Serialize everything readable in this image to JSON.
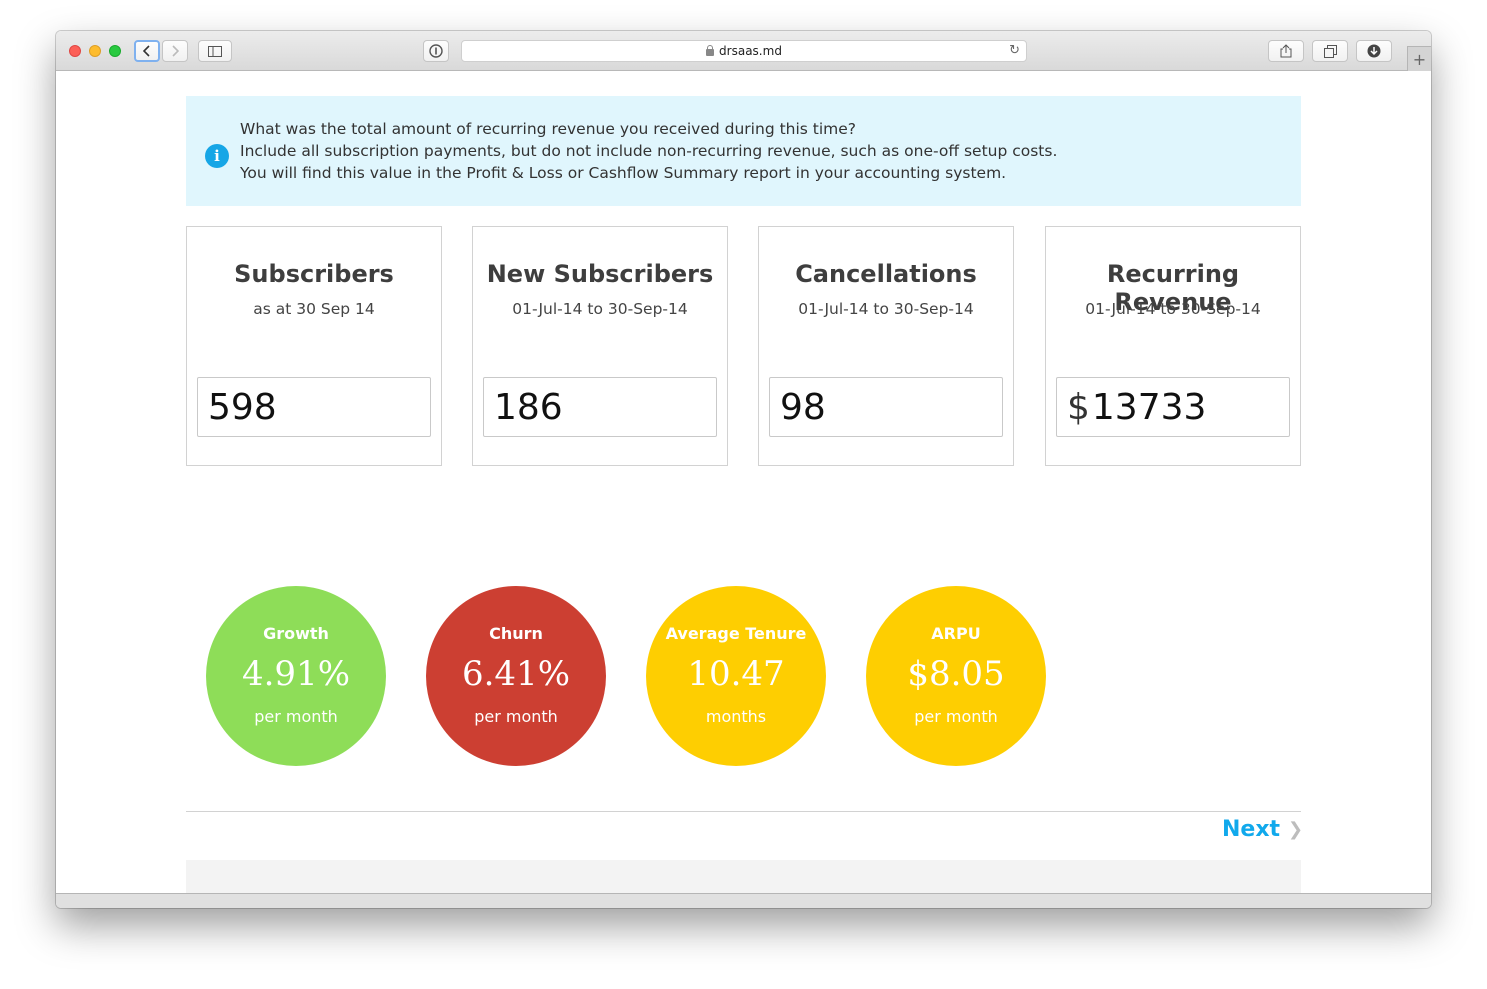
{
  "browser": {
    "url": "drsaas.md",
    "icons": {
      "back": "chevron-left-icon",
      "forward": "chevron-right-icon",
      "sidebar": "sidebar-icon",
      "reader": "reader-icon",
      "reload": "reload-icon",
      "share": "share-icon",
      "tabs": "tabs-icon",
      "download": "download-icon",
      "new_tab": "plus-icon"
    }
  },
  "info": {
    "icon": "info-icon",
    "lines": [
      "What was the total amount of recurring revenue you received during this time?",
      "Include all subscription payments, but do not include non-recurring revenue, such as one-off setup costs.",
      "You will find this value in the Profit & Loss or Cashflow Summary report in your accounting system."
    ]
  },
  "cards": [
    {
      "title": "Subscribers",
      "subtitle": "as at 30 Sep 14",
      "value": "598"
    },
    {
      "title": "New Subscribers",
      "subtitle": "01-Jul-14 to 30-Sep-14",
      "value": "186"
    },
    {
      "title": "Cancellations",
      "subtitle": "01-Jul-14 to 30-Sep-14",
      "value": "98"
    },
    {
      "title": "Recurring Revenue",
      "subtitle": "01-Jul-14 to 30-Sep-14",
      "currency": "$",
      "value": "13733"
    }
  ],
  "metrics": [
    {
      "label": "Growth",
      "value": "4.91%",
      "unit": "per month",
      "color": "#8edd58"
    },
    {
      "label": "Churn",
      "value": "6.41%",
      "unit": "per month",
      "color": "#cc3f32"
    },
    {
      "label": "Average Tenure",
      "value": "10.47",
      "unit": "months",
      "color": "#fece01"
    },
    {
      "label": "ARPU",
      "value": "$8.05",
      "unit": "per month",
      "color": "#fece01"
    }
  ],
  "nav": {
    "next_label": "Next",
    "next_color": "#11a9ec"
  }
}
